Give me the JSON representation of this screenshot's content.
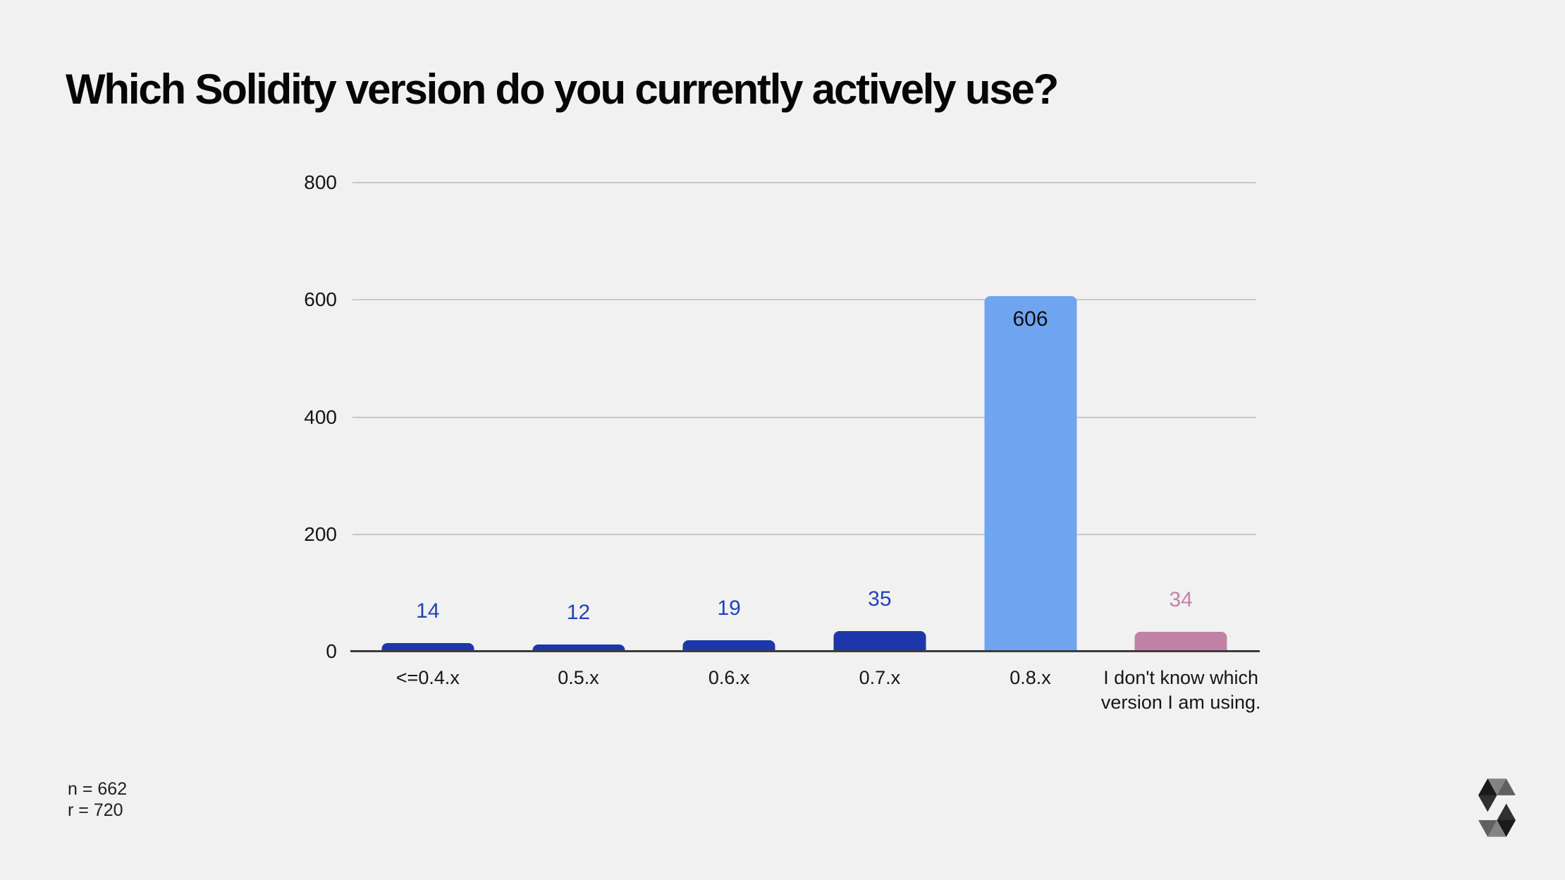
{
  "title": "Which Solidity version do you currently actively use?",
  "footer": {
    "sample_size": "n = 662",
    "responses": "r = 720"
  },
  "logo": "solidity-logo",
  "colors": {
    "background": "#f1f1f2",
    "gridline": "#c9c9c9",
    "axis_line": "#3c3c3c",
    "dark_blue": "#1d37aa",
    "light_blue": "#6fa5f0",
    "pink": "#c282a6",
    "label_blue": "#2342b5",
    "label_black": "#0e0e0e",
    "title_text": "#060606"
  },
  "chart_data": {
    "type": "bar",
    "title": "Which Solidity version do you currently actively use?",
    "categories": [
      "<=0.4.x",
      "0.5.x",
      "0.6.x",
      "0.7.x",
      "0.8.x",
      "I don't know which version I am using."
    ],
    "values": [
      14,
      12,
      19,
      35,
      606,
      34
    ],
    "bar_colors": [
      "#1d37aa",
      "#1d37aa",
      "#1d37aa",
      "#1d37aa",
      "#6fa5f0",
      "#c282a6"
    ],
    "value_label_colors": [
      "#2342b5",
      "#2342b5",
      "#2342b5",
      "#2342b5",
      "#0e0e0e",
      "#c282a6"
    ],
    "value_label_inside": [
      false,
      false,
      false,
      false,
      true,
      false
    ],
    "xlabel": "",
    "ylabel": "",
    "yticks": [
      0,
      200,
      400,
      600,
      800
    ],
    "ylim": [
      0,
      800
    ],
    "grid": true,
    "legend": false
  }
}
